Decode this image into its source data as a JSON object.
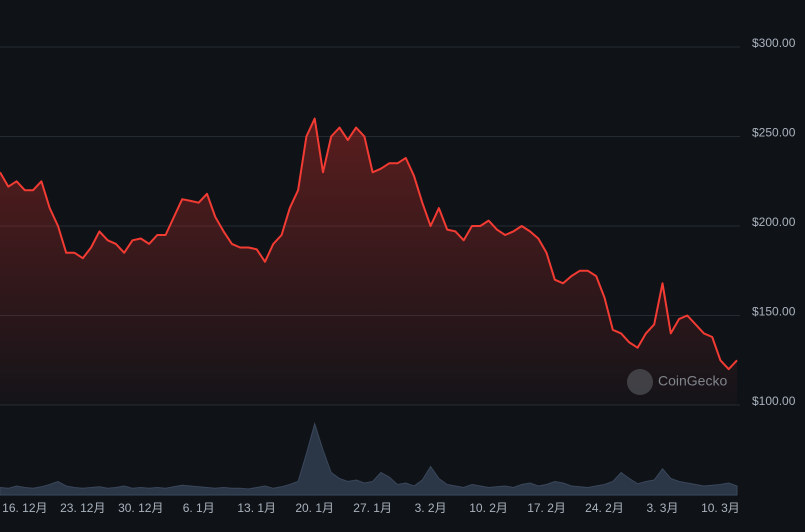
{
  "chart_data": {
    "type": "line",
    "categories": [
      null,
      null,
      null,
      "16. 12月",
      null,
      null,
      null,
      null,
      null,
      null,
      "23. 12月",
      null,
      null,
      null,
      null,
      null,
      null,
      "30. 12月",
      null,
      null,
      null,
      null,
      null,
      null,
      "6. 1月",
      null,
      null,
      null,
      null,
      null,
      null,
      "13. 1月",
      null,
      null,
      null,
      null,
      null,
      null,
      "20. 1月",
      null,
      null,
      null,
      null,
      null,
      null,
      "27. 1月",
      null,
      null,
      null,
      null,
      null,
      null,
      "3. 2月",
      null,
      null,
      null,
      null,
      null,
      null,
      "10. 2月",
      null,
      null,
      null,
      null,
      null,
      null,
      "17. 2月",
      null,
      null,
      null,
      null,
      null,
      null,
      "24. 2月",
      null,
      null,
      null,
      null,
      null,
      null,
      "3. 3月",
      null,
      null,
      null,
      null,
      null,
      null,
      "10. 3月",
      null,
      null
    ],
    "values": [
      230,
      222,
      225,
      220,
      220,
      225,
      210,
      200,
      185,
      185,
      182,
      188,
      197,
      192,
      190,
      185,
      192,
      193,
      190,
      195,
      195,
      205,
      215,
      214,
      213,
      218,
      205,
      197,
      190,
      188,
      188,
      187,
      180,
      190,
      195,
      210,
      220,
      250,
      260,
      230,
      250,
      255,
      248,
      255,
      250,
      230,
      232,
      235,
      235,
      238,
      228,
      213,
      200,
      210,
      198,
      197,
      192,
      200,
      200,
      203,
      198,
      195,
      197,
      200,
      197,
      193,
      185,
      170,
      168,
      172,
      175,
      175,
      172,
      160,
      142,
      140,
      135,
      132,
      140,
      145,
      168,
      140,
      148,
      150,
      145,
      140,
      138,
      125,
      120,
      125
    ],
    "volume": [
      10,
      9,
      12,
      10,
      9,
      11,
      14,
      18,
      12,
      10,
      9,
      10,
      11,
      9,
      10,
      12,
      9,
      10,
      9,
      10,
      9,
      11,
      13,
      12,
      11,
      10,
      9,
      10,
      9,
      9,
      8,
      10,
      12,
      9,
      11,
      14,
      18,
      55,
      95,
      60,
      30,
      22,
      18,
      20,
      16,
      18,
      30,
      24,
      14,
      16,
      12,
      20,
      38,
      22,
      14,
      12,
      10,
      14,
      12,
      10,
      11,
      12,
      10,
      14,
      16,
      12,
      14,
      18,
      16,
      12,
      11,
      10,
      12,
      14,
      18,
      30,
      22,
      15,
      18,
      20,
      35,
      22,
      18,
      16,
      14,
      12,
      13,
      14,
      16,
      12
    ],
    "volume_lim": [
      0,
      100
    ],
    "color": "#f23b33",
    "ylim": [
      100,
      300
    ],
    "yticks": [
      {
        "value": 100,
        "label": "$100.00"
      },
      {
        "value": 150,
        "label": "$150.00"
      },
      {
        "value": 200,
        "label": "$200.00"
      },
      {
        "value": 250,
        "label": "$250.00"
      },
      {
        "value": 300,
        "label": "$300.00"
      }
    ],
    "grid": true,
    "watermark": "CoinGecko"
  }
}
